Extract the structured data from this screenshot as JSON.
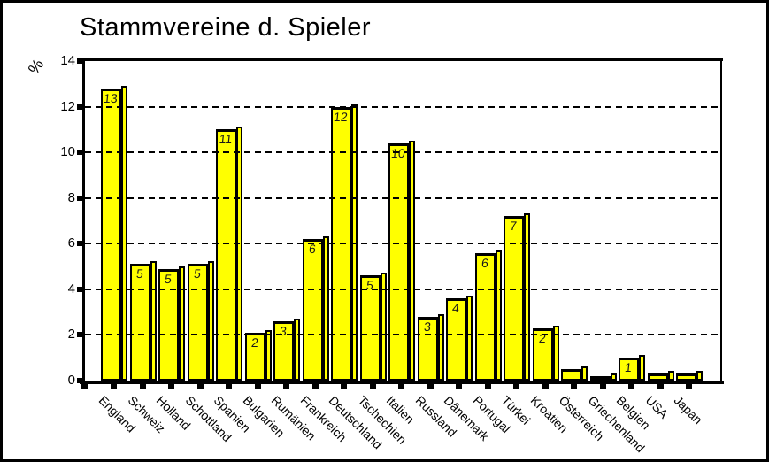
{
  "chart_data": {
    "type": "bar",
    "title": "Stammvereine d. Spieler",
    "ylabel": "%",
    "xlabel": "",
    "categories": [
      "England",
      "Schweiz",
      "Holland",
      "Schottland",
      "Spanien",
      "Bulgarien",
      "Rumänien",
      "Frankreich",
      "Deutschland",
      "Tschechien",
      "Italien",
      "Russland",
      "Dänemark",
      "Portugal",
      "Türkei",
      "Kroatien",
      "Österreich",
      "Griechenland",
      "Belgien",
      "USA",
      "Japan"
    ],
    "values": [
      12.8,
      5.1,
      4.9,
      5.1,
      11.0,
      2.1,
      2.6,
      6.2,
      12.0,
      4.6,
      10.4,
      2.8,
      3.6,
      5.6,
      7.2,
      2.3,
      0.5,
      0.2,
      1.0,
      0.3,
      0.3
    ],
    "bar_labels": [
      "13",
      "5",
      "5",
      "5",
      "11",
      "2",
      "3",
      "6",
      "12",
      "5",
      "10",
      "3",
      "4",
      "6",
      "7",
      "2",
      "",
      "",
      "1",
      "",
      ""
    ],
    "y_ticks": [
      0,
      2,
      4,
      6,
      8,
      10,
      12,
      14
    ],
    "ylim": [
      0,
      14
    ],
    "grid": "horizontal-dashed-over-bars",
    "legend": "none",
    "bar_color": "#FFFF00",
    "bar_border_color": "#000000",
    "background_color": "#FFFFFF",
    "text_color": "#000000"
  }
}
